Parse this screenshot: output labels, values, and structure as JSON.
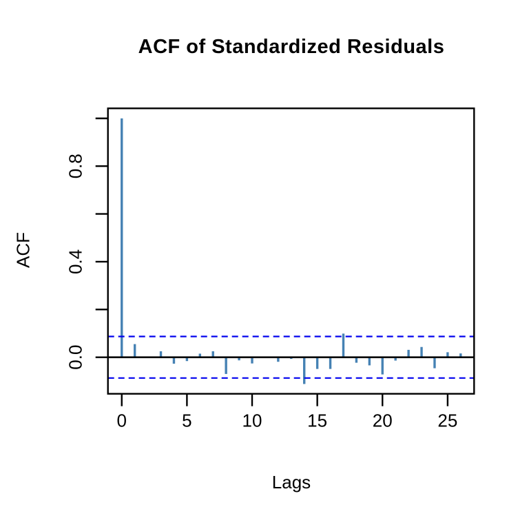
{
  "title": "ACF of Standardized Residuals",
  "chart_data": {
    "type": "bar",
    "title": "ACF of Standardized Residuals",
    "xlabel": "Lags",
    "ylabel": "ACF",
    "lags": [
      0,
      1,
      2,
      3,
      4,
      5,
      6,
      7,
      8,
      9,
      10,
      11,
      12,
      13,
      14,
      15,
      16,
      17,
      18,
      19,
      20,
      21,
      22,
      23,
      24,
      25,
      26
    ],
    "values": [
      1.0,
      0.055,
      0.0,
      0.025,
      -0.027,
      -0.016,
      0.015,
      0.025,
      -0.07,
      -0.013,
      -0.026,
      0.0,
      -0.019,
      -0.007,
      -0.112,
      -0.049,
      -0.049,
      0.099,
      -0.023,
      -0.034,
      -0.072,
      -0.014,
      0.031,
      0.043,
      -0.046,
      0.021,
      0.016
    ],
    "confidence_band": 0.087,
    "xlim": [
      -1.06,
      27.03
    ],
    "ylim": [
      -0.153,
      1.042
    ],
    "x_ticks": [
      0,
      5,
      10,
      15,
      20,
      25
    ],
    "y_ticks": [
      0.0,
      0.2,
      0.4,
      0.6,
      0.8,
      1.0
    ],
    "y_labeled_ticks": [
      "0.0",
      "0.4",
      "0.8"
    ],
    "y_labeled_values": [
      0.0,
      0.4,
      0.8
    ],
    "grid": "off",
    "legend": "none",
    "colors": {
      "bar": "#4682B4",
      "confidence_line": "#0000EE",
      "axis": "#000000",
      "background": "#FFFFFF"
    }
  }
}
